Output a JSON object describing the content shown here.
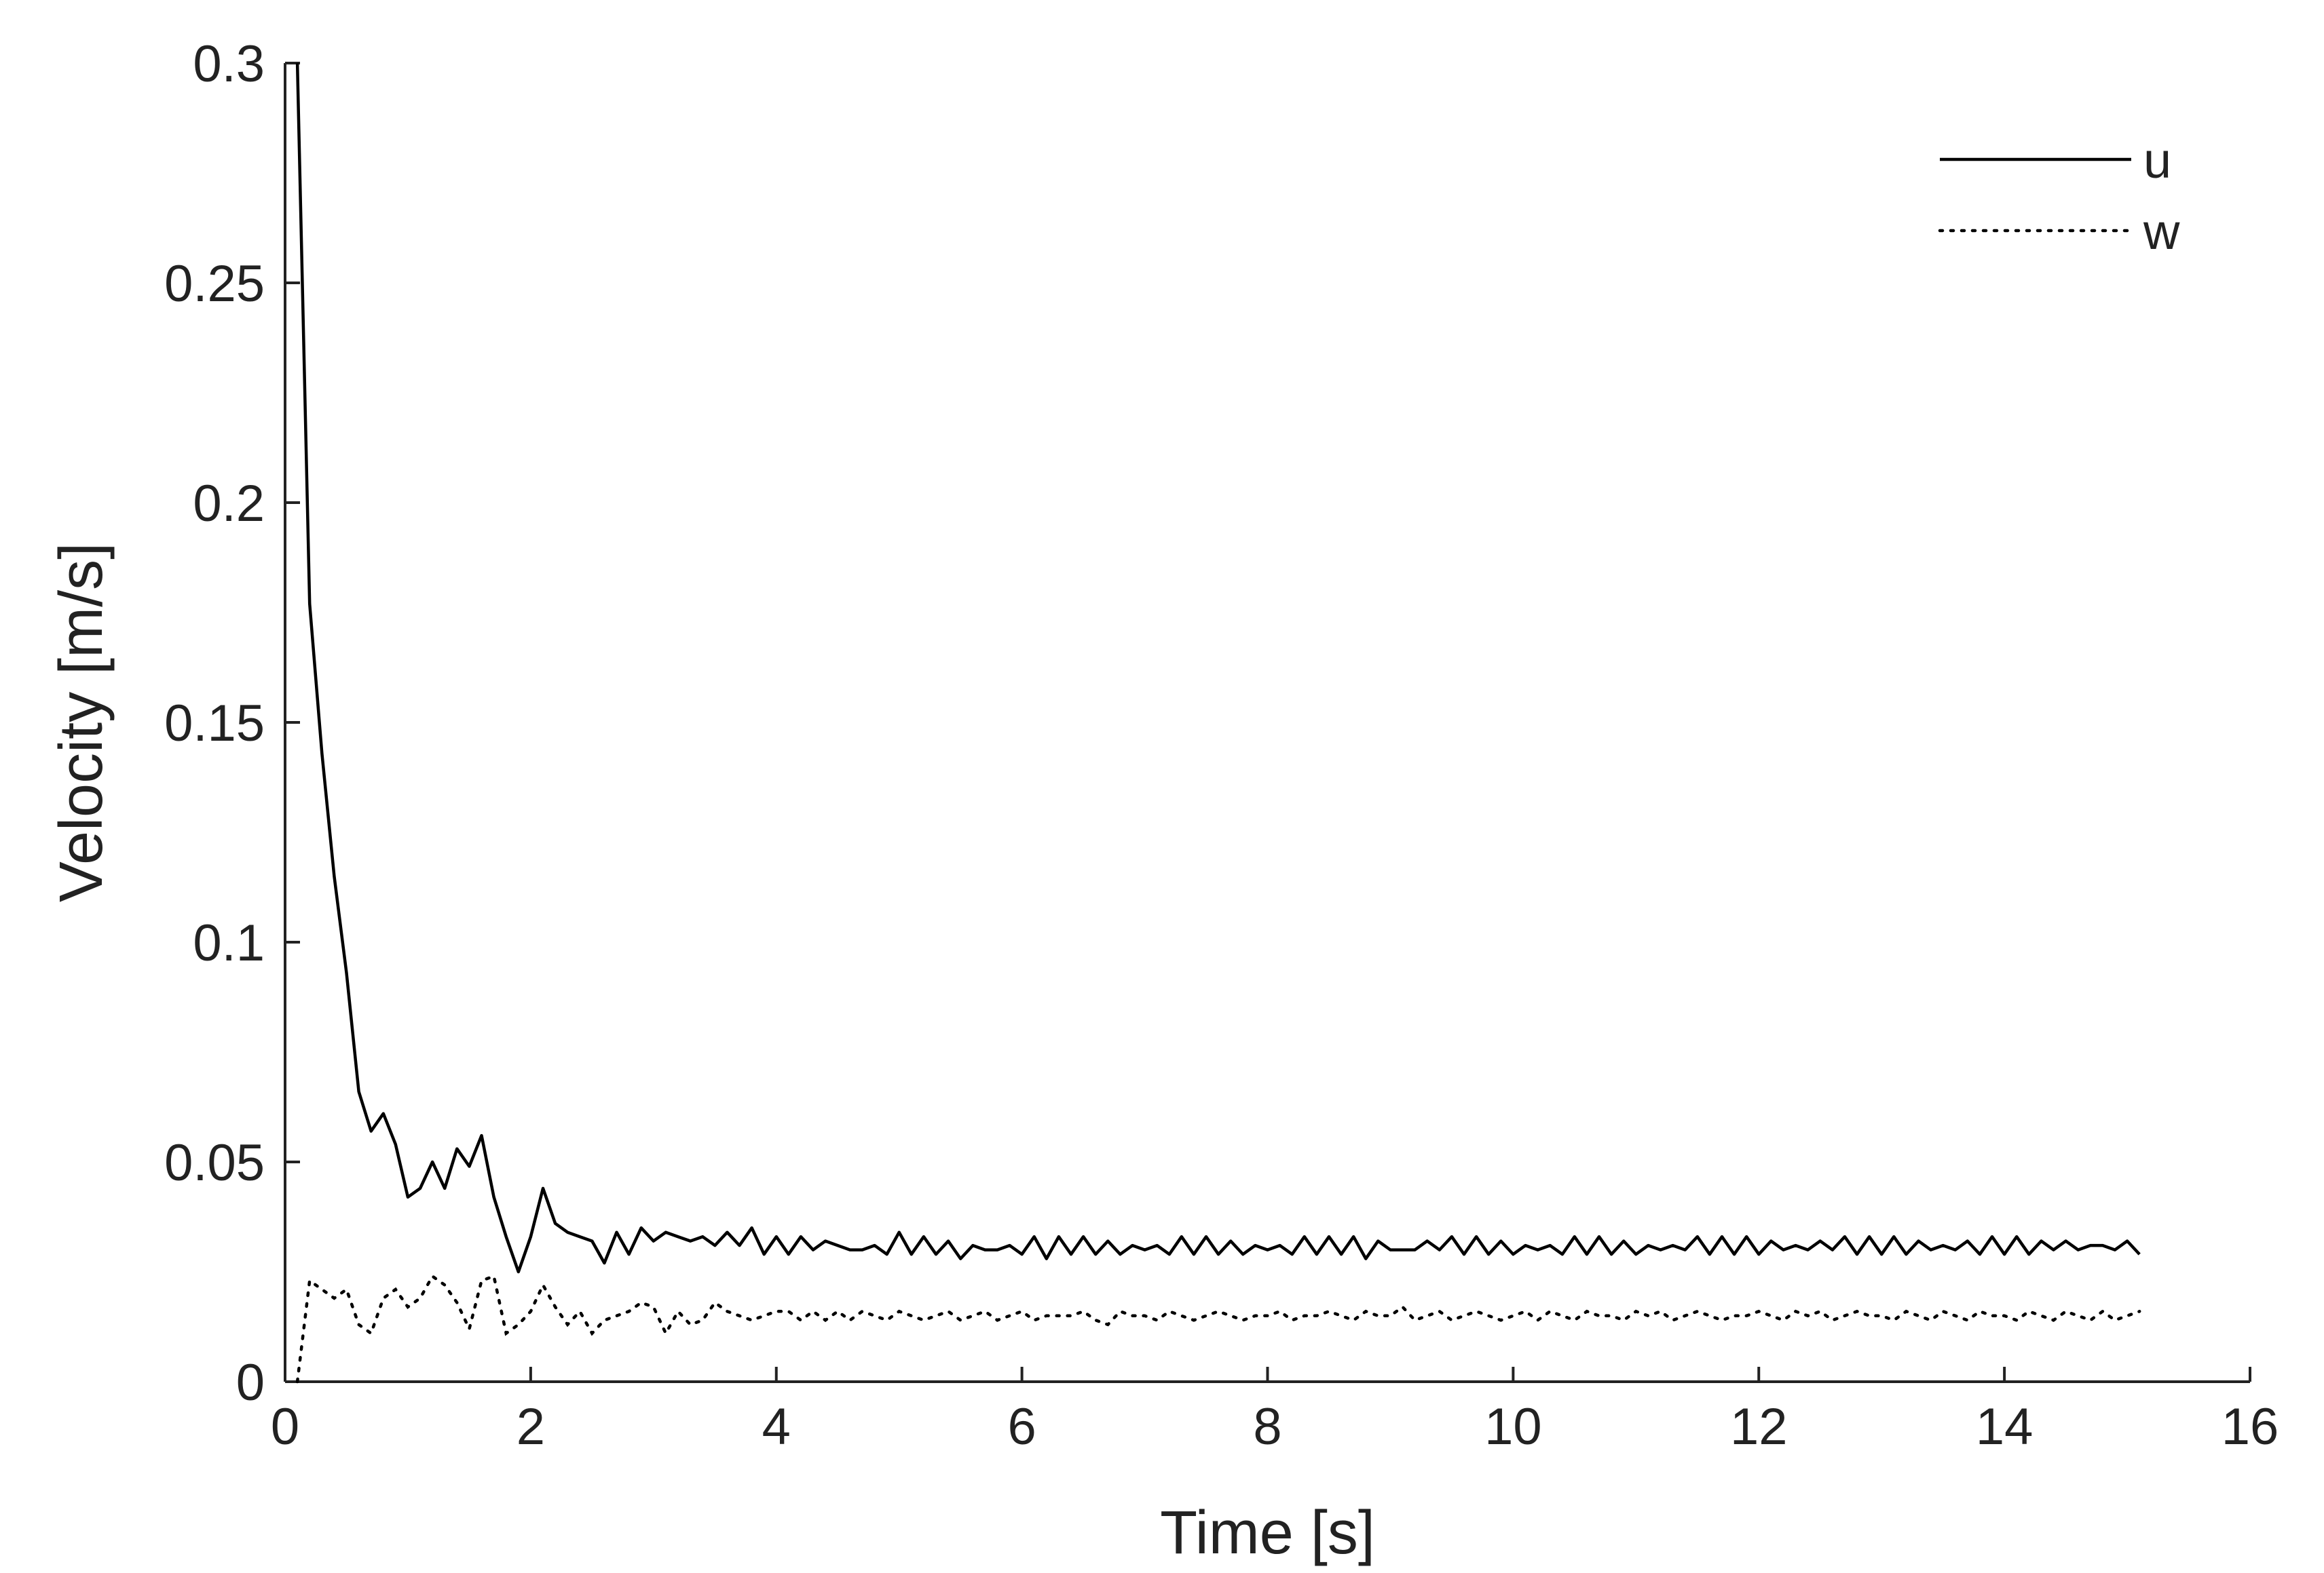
{
  "chart_data": {
    "type": "line",
    "title": "",
    "xlabel": "Time [s]",
    "ylabel": "Velocity [m/s]",
    "xlim": [
      0,
      16
    ],
    "ylim": [
      0,
      0.3
    ],
    "xticks": [
      0,
      2,
      4,
      6,
      8,
      10,
      12,
      14,
      16
    ],
    "yticks": [
      0,
      0.05,
      0.1,
      0.15,
      0.2,
      0.25,
      0.3
    ],
    "xtick_labels": [
      "0",
      "2",
      "4",
      "6",
      "8",
      "10",
      "12",
      "14",
      "16"
    ],
    "ytick_labels": [
      "0",
      "0.05",
      "0.1",
      "0.15",
      "0.2",
      "0.25",
      "0.3"
    ],
    "grid": false,
    "legend_position": "top-right",
    "series": [
      {
        "name": "u",
        "style": "solid",
        "color": "#000000",
        "x": [
          0.1,
          0.2,
          0.3,
          0.4,
          0.5,
          0.6,
          0.7,
          0.8,
          0.9,
          1.0,
          1.1,
          1.2,
          1.3,
          1.4,
          1.5,
          1.6,
          1.7,
          1.8,
          1.9,
          2.0,
          2.1,
          2.2,
          2.3,
          2.4,
          2.5,
          2.6,
          2.7,
          2.8,
          2.9,
          3.0,
          3.1,
          3.2,
          3.3,
          3.4,
          3.5,
          3.6,
          3.7,
          3.8,
          3.9,
          4.0,
          4.1,
          4.2,
          4.3,
          4.4,
          4.5,
          4.6,
          4.7,
          4.8,
          4.9,
          5.0,
          5.1,
          5.2,
          5.3,
          5.4,
          5.5,
          5.6,
          5.7,
          5.8,
          5.9,
          6.0,
          6.1,
          6.2,
          6.3,
          6.4,
          6.5,
          6.6,
          6.7,
          6.8,
          6.9,
          7.0,
          7.1,
          7.2,
          7.3,
          7.4,
          7.5,
          7.6,
          7.7,
          7.8,
          7.9,
          8.0,
          8.1,
          8.2,
          8.3,
          8.4,
          8.5,
          8.6,
          8.7,
          8.8,
          8.9,
          9.0,
          9.1,
          9.2,
          9.3,
          9.4,
          9.5,
          9.6,
          9.7,
          9.8,
          9.9,
          10.0,
          10.1,
          10.2,
          10.3,
          10.4,
          10.5,
          10.6,
          10.7,
          10.8,
          10.9,
          11.0,
          11.1,
          11.2,
          11.3,
          11.4,
          11.5,
          11.6,
          11.7,
          11.8,
          11.9,
          12.0,
          12.1,
          12.2,
          12.3,
          12.4,
          12.5,
          12.6,
          12.7,
          12.8,
          12.9,
          13.0,
          13.1,
          13.2,
          13.3,
          13.4,
          13.5,
          13.6,
          13.7,
          13.8,
          13.9,
          14.0,
          14.1,
          14.2,
          14.3,
          14.4,
          14.5,
          14.6,
          14.7,
          14.8,
          14.9,
          15.0,
          15.1
        ],
        "values": [
          0.3,
          0.177,
          0.143,
          0.115,
          0.093,
          0.066,
          0.057,
          0.061,
          0.054,
          0.042,
          0.044,
          0.05,
          0.044,
          0.053,
          0.049,
          0.056,
          0.042,
          0.033,
          0.025,
          0.033,
          0.044,
          0.036,
          0.034,
          0.033,
          0.032,
          0.027,
          0.034,
          0.029,
          0.035,
          0.032,
          0.034,
          0.033,
          0.032,
          0.033,
          0.031,
          0.034,
          0.031,
          0.035,
          0.029,
          0.033,
          0.029,
          0.033,
          0.03,
          0.032,
          0.031,
          0.03,
          0.03,
          0.031,
          0.029,
          0.034,
          0.029,
          0.033,
          0.029,
          0.032,
          0.028,
          0.031,
          0.03,
          0.03,
          0.031,
          0.029,
          0.033,
          0.028,
          0.033,
          0.029,
          0.033,
          0.029,
          0.032,
          0.029,
          0.031,
          0.03,
          0.031,
          0.029,
          0.033,
          0.029,
          0.033,
          0.029,
          0.032,
          0.029,
          0.031,
          0.03,
          0.031,
          0.029,
          0.033,
          0.029,
          0.033,
          0.029,
          0.033,
          0.028,
          0.032,
          0.03,
          0.03,
          0.03,
          0.032,
          0.03,
          0.033,
          0.029,
          0.033,
          0.029,
          0.032,
          0.029,
          0.031,
          0.03,
          0.031,
          0.029,
          0.033,
          0.029,
          0.033,
          0.029,
          0.032,
          0.029,
          0.031,
          0.03,
          0.031,
          0.03,
          0.033,
          0.029,
          0.033,
          0.029,
          0.033,
          0.029,
          0.032,
          0.03,
          0.031,
          0.03,
          0.032,
          0.03,
          0.033,
          0.029,
          0.033,
          0.029,
          0.033,
          0.029,
          0.032,
          0.03,
          0.031,
          0.03,
          0.032,
          0.029,
          0.033,
          0.029,
          0.033,
          0.029,
          0.032,
          0.03,
          0.032,
          0.03,
          0.031,
          0.031,
          0.03,
          0.032,
          0.029
        ]
      },
      {
        "name": "w",
        "style": "dotted",
        "color": "#000000",
        "x": [
          0.1,
          0.2,
          0.3,
          0.4,
          0.5,
          0.6,
          0.7,
          0.8,
          0.9,
          1.0,
          1.1,
          1.2,
          1.3,
          1.4,
          1.5,
          1.6,
          1.7,
          1.8,
          1.9,
          2.0,
          2.1,
          2.2,
          2.3,
          2.4,
          2.5,
          2.6,
          2.7,
          2.8,
          2.9,
          3.0,
          3.1,
          3.2,
          3.3,
          3.4,
          3.5,
          3.6,
          3.7,
          3.8,
          3.9,
          4.0,
          4.1,
          4.2,
          4.3,
          4.4,
          4.5,
          4.6,
          4.7,
          4.8,
          4.9,
          5.0,
          5.1,
          5.2,
          5.3,
          5.4,
          5.5,
          5.6,
          5.7,
          5.8,
          5.9,
          6.0,
          6.1,
          6.2,
          6.3,
          6.4,
          6.5,
          6.6,
          6.7,
          6.8,
          6.9,
          7.0,
          7.1,
          7.2,
          7.3,
          7.4,
          7.5,
          7.6,
          7.7,
          7.8,
          7.9,
          8.0,
          8.1,
          8.2,
          8.3,
          8.4,
          8.5,
          8.6,
          8.7,
          8.8,
          8.9,
          9.0,
          9.1,
          9.2,
          9.3,
          9.4,
          9.5,
          9.6,
          9.7,
          9.8,
          9.9,
          10.0,
          10.1,
          10.2,
          10.3,
          10.4,
          10.5,
          10.6,
          10.7,
          10.8,
          10.9,
          11.0,
          11.1,
          11.2,
          11.3,
          11.4,
          11.5,
          11.6,
          11.7,
          11.8,
          11.9,
          12.0,
          12.1,
          12.2,
          12.3,
          12.4,
          12.5,
          12.6,
          12.7,
          12.8,
          12.9,
          13.0,
          13.1,
          13.2,
          13.3,
          13.4,
          13.5,
          13.6,
          13.7,
          13.8,
          13.9,
          14.0,
          14.1,
          14.2,
          14.3,
          14.4,
          14.5,
          14.6,
          14.7,
          14.8,
          14.9,
          15.0,
          15.1
        ],
        "values": [
          0.0,
          0.023,
          0.021,
          0.019,
          0.021,
          0.013,
          0.011,
          0.019,
          0.021,
          0.017,
          0.019,
          0.024,
          0.022,
          0.018,
          0.012,
          0.023,
          0.024,
          0.011,
          0.013,
          0.016,
          0.022,
          0.017,
          0.013,
          0.016,
          0.011,
          0.014,
          0.015,
          0.016,
          0.018,
          0.017,
          0.011,
          0.016,
          0.013,
          0.014,
          0.018,
          0.016,
          0.015,
          0.014,
          0.015,
          0.016,
          0.016,
          0.014,
          0.016,
          0.014,
          0.016,
          0.014,
          0.016,
          0.015,
          0.014,
          0.016,
          0.015,
          0.014,
          0.015,
          0.016,
          0.014,
          0.015,
          0.016,
          0.014,
          0.015,
          0.016,
          0.014,
          0.015,
          0.015,
          0.015,
          0.016,
          0.014,
          0.013,
          0.016,
          0.015,
          0.015,
          0.014,
          0.016,
          0.015,
          0.014,
          0.015,
          0.016,
          0.015,
          0.014,
          0.015,
          0.015,
          0.016,
          0.014,
          0.015,
          0.015,
          0.016,
          0.015,
          0.014,
          0.016,
          0.015,
          0.015,
          0.017,
          0.014,
          0.015,
          0.016,
          0.014,
          0.015,
          0.016,
          0.015,
          0.014,
          0.015,
          0.016,
          0.014,
          0.016,
          0.015,
          0.014,
          0.016,
          0.015,
          0.015,
          0.014,
          0.016,
          0.015,
          0.016,
          0.014,
          0.015,
          0.016,
          0.015,
          0.014,
          0.015,
          0.015,
          0.016,
          0.015,
          0.014,
          0.016,
          0.015,
          0.016,
          0.014,
          0.015,
          0.016,
          0.015,
          0.015,
          0.014,
          0.016,
          0.015,
          0.014,
          0.016,
          0.015,
          0.014,
          0.016,
          0.015,
          0.015,
          0.014,
          0.016,
          0.015,
          0.014,
          0.016,
          0.015,
          0.014,
          0.016,
          0.014,
          0.015,
          0.016
        ]
      }
    ]
  }
}
